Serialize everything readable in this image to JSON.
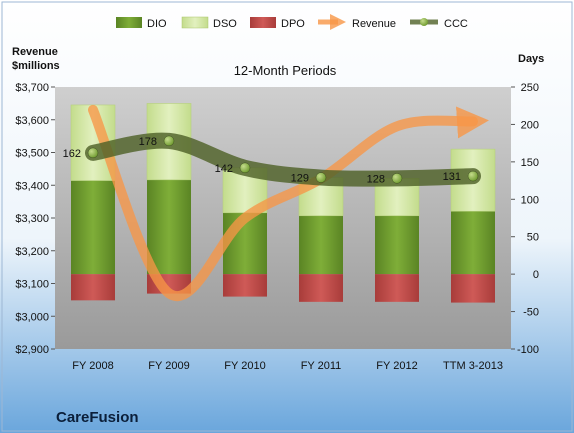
{
  "chart_data": {
    "type": "bar",
    "title": "12-Month Periods",
    "company": "CareFusion",
    "categories": [
      "FY 2008",
      "FY 2009",
      "FY 2010",
      "FY 2011",
      "FY 2012",
      "TTM 3-2013"
    ],
    "left_axis": {
      "label_line1": "Revenue",
      "label_line2": "$millions",
      "range": [
        2900,
        3700
      ],
      "ticks": [
        "$2,900",
        "$3,000",
        "$3,100",
        "$3,200",
        "$3,300",
        "$3,400",
        "$3,500",
        "$3,600",
        "$3,700"
      ]
    },
    "right_axis": {
      "label": "Days",
      "range": [
        -100,
        250
      ],
      "ticks": [
        "-100",
        "-50",
        "0",
        "50",
        "100",
        "150",
        "200",
        "250"
      ]
    },
    "series": [
      {
        "name": "DIO",
        "kind": "bar",
        "axis": "days",
        "values": [
          125,
          126,
          82,
          78,
          78,
          84
        ],
        "color": "#6e9a2e"
      },
      {
        "name": "DSO",
        "kind": "bar",
        "axis": "days",
        "values": [
          101,
          102,
          60,
          51,
          50,
          83
        ],
        "color": "#d4e8a7"
      },
      {
        "name": "DPO",
        "kind": "bar",
        "axis": "days",
        "values": [
          -35,
          -26,
          -30,
          -37,
          -37,
          -38
        ],
        "color": "#c0504d"
      },
      {
        "name": "Revenue",
        "kind": "line",
        "axis": "revenue",
        "values": [
          3630,
          3070,
          3300,
          3420,
          3580,
          3595
        ],
        "color": "#f79646"
      },
      {
        "name": "CCC",
        "kind": "line",
        "axis": "days",
        "values": [
          162,
          178,
          142,
          129,
          128,
          131
        ],
        "labels": [
          "162",
          "178",
          "142",
          "129",
          "128",
          "131"
        ],
        "color": "#4f6228"
      }
    ],
    "legend": {
      "position": "top",
      "entries": [
        "DIO",
        "DSO",
        "DPO",
        "Revenue",
        "CCC"
      ]
    },
    "grid": false
  }
}
